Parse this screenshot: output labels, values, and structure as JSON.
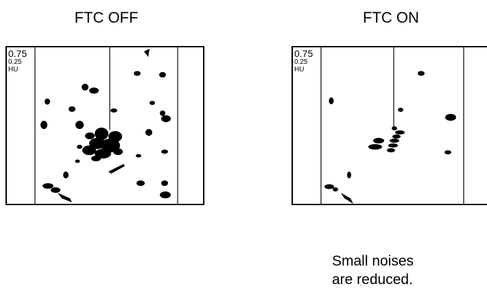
{
  "panels": [
    {
      "title": "FTC OFF",
      "scale": {
        "top": "0.75",
        "mid": "0.25",
        "unit": "HU"
      }
    },
    {
      "title": "FTC ON",
      "scale": {
        "top": "0.75",
        "mid": "0.25",
        "unit": "HU"
      }
    }
  ],
  "note": {
    "line1": "Small noises",
    "line2": "are reduced."
  },
  "colors": {
    "echo": "#000000",
    "frame": "#000000",
    "background": "#ffffff"
  }
}
